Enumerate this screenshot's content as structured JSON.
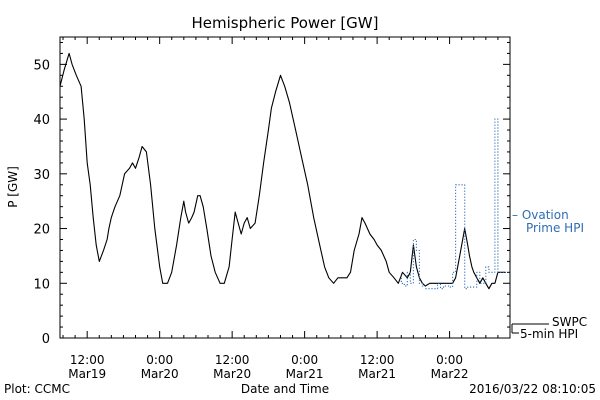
{
  "chart_data": {
    "type": "line",
    "title": "Hemispheric Power [GW]",
    "xlabel": "Date and Time",
    "ylabel": "P [GW]",
    "ylim": [
      0,
      55
    ],
    "y_ticks": [
      0,
      10,
      20,
      30,
      40,
      50
    ],
    "x_unit": "hours since 2016-03-19 00:00",
    "xlim": [
      7.5,
      82
    ],
    "x_ticks": [
      {
        "x": 12,
        "time": "12:00",
        "date": "Mar19"
      },
      {
        "x": 24,
        "time": "0:00",
        "date": "Mar20"
      },
      {
        "x": 36,
        "time": "12:00",
        "date": "Mar20"
      },
      {
        "x": 48,
        "time": "0:00",
        "date": "Mar21"
      },
      {
        "x": 60,
        "time": "12:00",
        "date": "Mar21"
      },
      {
        "x": 72,
        "time": "0:00",
        "date": "Mar22"
      }
    ],
    "grid": false,
    "series": [
      {
        "name": "SWPC 5-min HPI",
        "label_lines": [
          "SWPC",
          "5-min HPI"
        ],
        "color": "#000000",
        "style": "solid",
        "x": [
          7.5,
          8.2,
          9.0,
          9.5,
          10.2,
          10.6,
          11.0,
          11.5,
          12.0,
          12.5,
          13.0,
          13.5,
          14.0,
          14.7,
          15.3,
          15.6,
          16.0,
          16.6,
          17.0,
          17.4,
          17.8,
          18.2,
          19.0,
          19.5,
          20.0,
          20.6,
          21.1,
          21.8,
          22.5,
          23.2,
          24.0,
          24.5,
          25.3,
          26.0,
          26.8,
          27.5,
          28.0,
          28.3,
          28.8,
          29.3,
          29.7,
          30.3,
          30.7,
          31.2,
          31.8,
          32.5,
          33.2,
          34.0,
          34.7,
          35.5,
          36.0,
          36.5,
          37.0,
          37.5,
          38.0,
          38.5,
          39.0,
          39.8,
          40.5,
          41.2,
          42.0,
          42.5,
          43.2,
          44.0,
          44.7,
          45.5,
          46.5,
          47.5,
          48.5,
          49.5,
          50.5,
          51.3,
          52.0,
          52.8,
          53.5,
          54.3,
          55.0,
          55.6,
          56.2,
          57.0,
          57.5,
          58.0,
          58.8,
          59.5,
          60.0,
          60.7,
          61.5,
          62.0,
          62.8,
          63.5,
          64.2,
          65.0,
          65.5,
          66.0,
          66.5,
          67.0,
          67.5,
          68.0,
          68.7,
          69.5,
          70.0,
          70.5,
          71.0,
          71.5,
          72.0,
          72.5,
          73.0,
          73.5,
          74.0,
          74.5,
          75.0,
          75.3,
          75.7,
          76.0,
          76.5,
          77.0,
          77.5,
          78.0,
          78.5,
          79.0,
          79.5,
          80.0,
          80.5,
          81.0,
          81.3
        ],
        "y": [
          46,
          49,
          52,
          50,
          48,
          47,
          46,
          40,
          32,
          28,
          22,
          17,
          14,
          16,
          18,
          20,
          22,
          24,
          25,
          26,
          28,
          30,
          31,
          32,
          31,
          33,
          35,
          34,
          28,
          20,
          13,
          10,
          10,
          12,
          17,
          22,
          25,
          23,
          21,
          22,
          23,
          26,
          26,
          24,
          20,
          15,
          12,
          10,
          10,
          13,
          18,
          23,
          21,
          19,
          21,
          22,
          20,
          21,
          26,
          32,
          38,
          42,
          45,
          48,
          46,
          43,
          38,
          33,
          28,
          22,
          17,
          13,
          11,
          10,
          11,
          11,
          11,
          12,
          16,
          19,
          22,
          21,
          19,
          18,
          17,
          16,
          14,
          12,
          11,
          10,
          12,
          11,
          12,
          17,
          13,
          11,
          10,
          9.5,
          10,
          10,
          10,
          10,
          10,
          10,
          10,
          10,
          11,
          14,
          17,
          20,
          17,
          15,
          13,
          12,
          11,
          10,
          11,
          10,
          9,
          10,
          10,
          12,
          12,
          12,
          12
        ]
      },
      {
        "name": "Ovation Prime HPI",
        "label_lines": [
          "– Ovation",
          "Prime HPI"
        ],
        "color": "#2f6db5",
        "style": "dotted",
        "x": [
          64.0,
          64.0,
          64.5,
          64.5,
          65.0,
          65.0,
          65.5,
          65.5,
          66.0,
          66.0,
          66.5,
          66.5,
          67.0,
          67.0,
          67.5,
          67.5,
          68.0,
          68.0,
          70.0,
          70.0,
          70.5,
          70.5,
          71.0,
          71.0,
          72.0,
          72.0,
          72.5,
          72.5,
          73.0,
          73.0,
          74.5,
          74.5,
          75.0,
          75.0,
          76.5,
          76.5,
          77.0,
          77.0,
          78.0,
          78.0,
          78.5,
          78.5,
          79.5,
          79.5,
          80.0,
          80.0,
          81.0
        ],
        "y": [
          11,
          10,
          10,
          9.5,
          9.5,
          12,
          12,
          10,
          10,
          18,
          18,
          16,
          16,
          10,
          10,
          9.5,
          9.5,
          9,
          9,
          10,
          10,
          9,
          9,
          9.5,
          9.5,
          9.3,
          9.3,
          12,
          12,
          28,
          28,
          9,
          9,
          9.3,
          9.3,
          12,
          12,
          10,
          10,
          13,
          13,
          12,
          12,
          40,
          40,
          12,
          12
        ]
      }
    ]
  },
  "footer": {
    "plot_credit": "Plot: CCMC",
    "timestamp": "2016/03/22 08:10:05"
  }
}
